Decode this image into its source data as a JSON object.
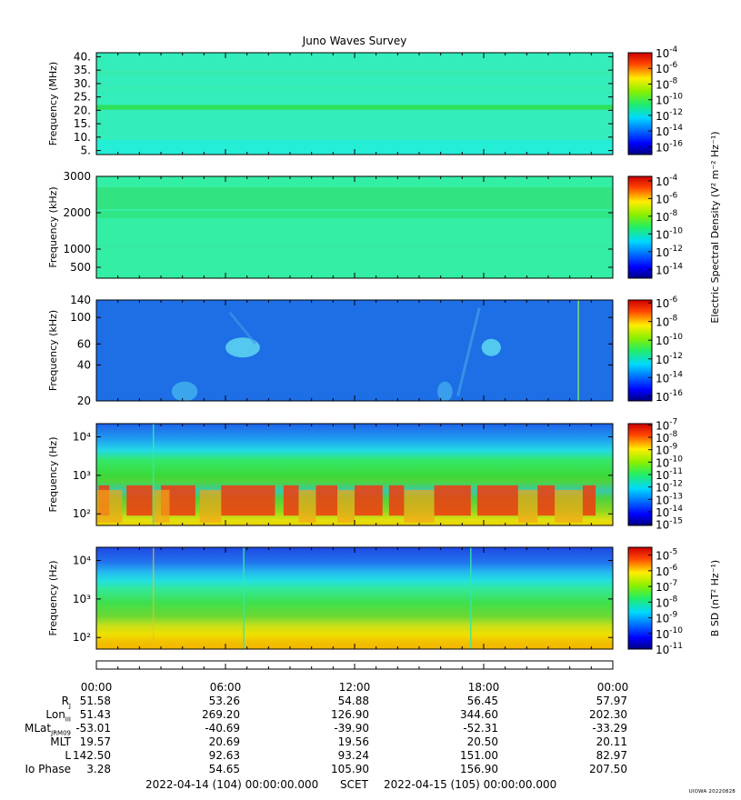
{
  "title": "Juno Waves Survey",
  "signature": "UIOWA 20220828",
  "chart_data": {
    "type": "heatmap",
    "panels": [
      {
        "name": "panel-hfwbr-mhz",
        "ylabel": "Frequency (MHz)",
        "yscale": "linear",
        "ylim": [
          3.5,
          41.5
        ],
        "yticks": [
          {
            "v": 5,
            "t": "5."
          },
          {
            "v": 10,
            "t": "10."
          },
          {
            "v": 15,
            "t": "15."
          },
          {
            "v": 20,
            "t": "20."
          },
          {
            "v": 25,
            "t": "25."
          },
          {
            "v": 30,
            "t": "30."
          },
          {
            "v": 35,
            "t": "35."
          },
          {
            "v": 40,
            "t": "40."
          }
        ],
        "colorbar": {
          "scale": "log10",
          "range": [
            -17,
            -4
          ],
          "ticks": [
            -16,
            -14,
            -12,
            -10,
            -8,
            -6,
            -4
          ],
          "label": ""
        },
        "background_color": "#33eebb",
        "features": [
          {
            "kind": "hband",
            "y": [
              20.2,
              22.0
            ],
            "color": "#2ede55",
            "opacity": 0.95
          },
          {
            "kind": "hband",
            "y": [
              3.5,
              9.0
            ],
            "color": "#22eedd",
            "opacity": 0.8
          },
          {
            "kind": "hband",
            "y": [
              33.0,
              35.0
            ],
            "color": "#3ee8a5",
            "opacity": 0.5
          },
          {
            "kind": "hband",
            "y": [
              28.0,
              28.8
            ],
            "color": "#3ee8a5",
            "opacity": 0.5
          }
        ]
      },
      {
        "name": "panel-hfr-khz",
        "ylabel": "Frequency (kHz)",
        "yscale": "linear",
        "ylim": [
          200,
          3000
        ],
        "yticks": [
          {
            "v": 500,
            "t": "500"
          },
          {
            "v": 1000,
            "t": "1000"
          },
          {
            "v": 2000,
            "t": "2000"
          },
          {
            "v": 3000,
            "t": "3000"
          }
        ],
        "colorbar": {
          "scale": "log10",
          "range": [
            -15,
            -3.5
          ],
          "ticks": [
            -14,
            -12,
            -10,
            -8,
            -6,
            -4
          ],
          "label": "Electric Spectral Density (V² m⁻² Hz⁻¹)"
        },
        "background_color": "#33eea5",
        "features": [
          {
            "kind": "hband",
            "y": [
              2100,
              2700
            ],
            "color": "#33e07a",
            "opacity": 0.85
          },
          {
            "kind": "hband",
            "y": [
              1850,
              2050
            ],
            "color": "#2edc66",
            "opacity": 0.5
          },
          {
            "kind": "hband",
            "y": [
              1050,
              1120
            ],
            "color": "#3ce6a0",
            "opacity": 0.6
          },
          {
            "kind": "hband",
            "y": [
              650,
              700
            ],
            "color": "#3ce6a0",
            "opacity": 0.4
          }
        ]
      },
      {
        "name": "panel-lfr-khz",
        "ylabel": "Frequency (kHz)",
        "yscale": "log10",
        "ylim": [
          20,
          140
        ],
        "yticks": [
          {
            "v": 20,
            "t": "20"
          },
          {
            "v": 40,
            "t": "40"
          },
          {
            "v": 60,
            "t": "60"
          },
          {
            "v": 100,
            "t": "100"
          },
          {
            "v": 140,
            "t": "140"
          }
        ],
        "colorbar": {
          "scale": "log10",
          "range": [
            -16.5,
            -5.7
          ],
          "ticks": [
            -16,
            -14,
            -12,
            -10,
            -8,
            -6
          ],
          "label": ""
        },
        "background_color": "#1e6ee6",
        "features": [
          {
            "kind": "blob",
            "t": 6.8,
            "f": 56,
            "rt": 0.8,
            "rf": 0.05,
            "color": "#5ad2f0",
            "opacity": 0.9
          },
          {
            "kind": "blob",
            "t": 18.35,
            "f": 56,
            "rt": 0.45,
            "rf": 0.04,
            "color": "#5ad2f0",
            "opacity": 0.9
          },
          {
            "kind": "blob",
            "t": 4.1,
            "f": 24,
            "rt": 0.6,
            "rf": 0.05,
            "color": "#44b4ee",
            "opacity": 0.8
          },
          {
            "kind": "blob",
            "t": 16.2,
            "f": 24,
            "rt": 0.35,
            "rf": 0.05,
            "color": "#44b4ee",
            "opacity": 0.7
          },
          {
            "kind": "streak",
            "t0": 16.8,
            "f0": 22,
            "t1": 17.8,
            "f1": 120,
            "color": "#3c9ce8",
            "width": 3,
            "opacity": 0.8
          },
          {
            "kind": "streak",
            "t0": 6.2,
            "f0": 110,
            "t1": 7.4,
            "f1": 60,
            "color": "#3c9ce8",
            "width": 3,
            "opacity": 0.6
          },
          {
            "kind": "vline",
            "t": 22.4,
            "color": "#7ae070",
            "opacity": 1.0
          }
        ]
      },
      {
        "name": "panel-lfr-hz",
        "ylabel": "Frequency (Hz)",
        "yscale": "log10",
        "ylim": [
          50,
          22000
        ],
        "yticks": [
          {
            "v": 100,
            "t": "10²"
          },
          {
            "v": 1000,
            "t": "10³"
          },
          {
            "v": 10000,
            "t": "10⁴"
          }
        ],
        "colorbar": {
          "scale": "log10",
          "range": [
            -15.1,
            -6.9
          ],
          "ticks": [
            -15,
            -14,
            -13,
            -12,
            -11,
            -10,
            -9,
            -8,
            -7
          ],
          "label": ""
        },
        "background_color": "#1f66e6",
        "features": [
          {
            "kind": "gradient",
            "stops": [
              {
                "f": 22000,
                "c": "#1f62e8"
              },
              {
                "f": 9000,
                "c": "#1f9bf0"
              },
              {
                "f": 4500,
                "c": "#22d9e8"
              },
              {
                "f": 2500,
                "c": "#33e86a"
              },
              {
                "f": 1000,
                "c": "#3cda3a"
              },
              {
                "f": 700,
                "c": "#4ed43c"
              },
              {
                "f": 400,
                "c": "#38c9aa"
              },
              {
                "f": 250,
                "c": "#4fd23e"
              },
              {
                "f": 120,
                "c": "#8cd820"
              },
              {
                "f": 70,
                "c": "#e0e010"
              },
              {
                "f": 50,
                "c": "#f0d000"
              }
            ]
          },
          {
            "kind": "blocks",
            "f": [
              90,
              550
            ],
            "color": "#f23a10",
            "opacity": 0.85,
            "segments": [
              [
                0.1,
                0.6
              ],
              [
                1.4,
                2.6
              ],
              [
                3.0,
                4.6
              ],
              [
                5.8,
                8.3
              ],
              [
                8.7,
                9.4
              ],
              [
                10.2,
                11.2
              ],
              [
                12.0,
                13.3
              ],
              [
                13.6,
                14.3
              ],
              [
                15.7,
                17.4
              ],
              [
                17.7,
                19.6
              ],
              [
                20.5,
                21.3
              ],
              [
                22.6,
                23.2
              ]
            ]
          },
          {
            "kind": "blocks",
            "f": [
              60,
              420
            ],
            "color": "#f4a418",
            "opacity": 0.7,
            "segments": [
              [
                0.0,
                1.2
              ],
              [
                2.6,
                3.4
              ],
              [
                4.8,
                5.8
              ],
              [
                9.4,
                10.2
              ],
              [
                11.2,
                12.0
              ],
              [
                14.3,
                15.7
              ],
              [
                19.6,
                20.5
              ],
              [
                21.3,
                22.6
              ]
            ]
          },
          {
            "kind": "vline",
            "t": 2.65,
            "color": "#33e8a8",
            "opacity": 0.9
          }
        ]
      },
      {
        "name": "panel-bsd-hz",
        "ylabel": "Frequency (Hz)",
        "yscale": "log10",
        "ylim": [
          50,
          22000
        ],
        "yticks": [
          {
            "v": 100,
            "t": "10²"
          },
          {
            "v": 1000,
            "t": "10³"
          },
          {
            "v": 10000,
            "t": "10⁴"
          }
        ],
        "colorbar": {
          "scale": "log10",
          "range": [
            -11,
            -4.5
          ],
          "ticks": [
            -11,
            -10,
            -9,
            -8,
            -7,
            -6,
            -5
          ],
          "label": "B SD (nT² Hz⁻¹)"
        },
        "background_color": "#1f66e6",
        "features": [
          {
            "kind": "gradient",
            "stops": [
              {
                "f": 22000,
                "c": "#1e48e2"
              },
              {
                "f": 9000,
                "c": "#2273ee"
              },
              {
                "f": 5000,
                "c": "#24b8f0"
              },
              {
                "f": 3000,
                "c": "#22e0e0"
              },
              {
                "f": 1800,
                "c": "#33e899"
              },
              {
                "f": 800,
                "c": "#3ee04c"
              },
              {
                "f": 350,
                "c": "#6ed832"
              },
              {
                "f": 200,
                "c": "#c8e018"
              },
              {
                "f": 120,
                "c": "#f0e000"
              },
              {
                "f": 80,
                "c": "#f2c400"
              },
              {
                "f": 50,
                "c": "#f2b400"
              }
            ]
          },
          {
            "kind": "vline",
            "t": 6.85,
            "color": "#33e8a8",
            "opacity": 0.9
          },
          {
            "kind": "vline",
            "t": 17.4,
            "color": "#33e8a8",
            "opacity": 0.9
          },
          {
            "kind": "vline",
            "t": 2.65,
            "color": "#e8c030",
            "opacity": 0.7
          }
        ]
      }
    ],
    "x": {
      "label": "SCET",
      "range_hours": [
        0,
        24
      ],
      "ticks": [
        "00:00",
        "06:00",
        "12:00",
        "18:00",
        "00:00"
      ],
      "tick_hours": [
        0,
        6,
        12,
        18,
        24
      ]
    },
    "ephemeris": [
      {
        "label": "R",
        "sub": "J",
        "values": [
          "51.58",
          "53.26",
          "54.88",
          "56.45",
          "57.97"
        ]
      },
      {
        "label": "Lon",
        "sub": "III",
        "values": [
          "51.43",
          "269.20",
          "126.90",
          "344.60",
          "202.30"
        ]
      },
      {
        "label": "MLat",
        "sub": "JRM09",
        "values": [
          "-53.01",
          "-40.69",
          "-39.90",
          "-52.31",
          "-33.29"
        ]
      },
      {
        "label": "MLT",
        "sub": "",
        "values": [
          "19.57",
          "20.69",
          "19.56",
          "20.50",
          "20.11"
        ]
      },
      {
        "label": "L",
        "sub": "",
        "values": [
          "142.50",
          "92.63",
          "93.24",
          "151.00",
          "82.97"
        ]
      },
      {
        "label": "Io Phase",
        "sub": "",
        "values": [
          "3.28",
          "54.65",
          "105.90",
          "156.90",
          "207.50"
        ]
      }
    ],
    "time_range": {
      "start": "2022-04-14 (104) 00:00:00.000",
      "label": "SCET",
      "end": "2022-04-15 (105) 00:00:00.000"
    }
  }
}
